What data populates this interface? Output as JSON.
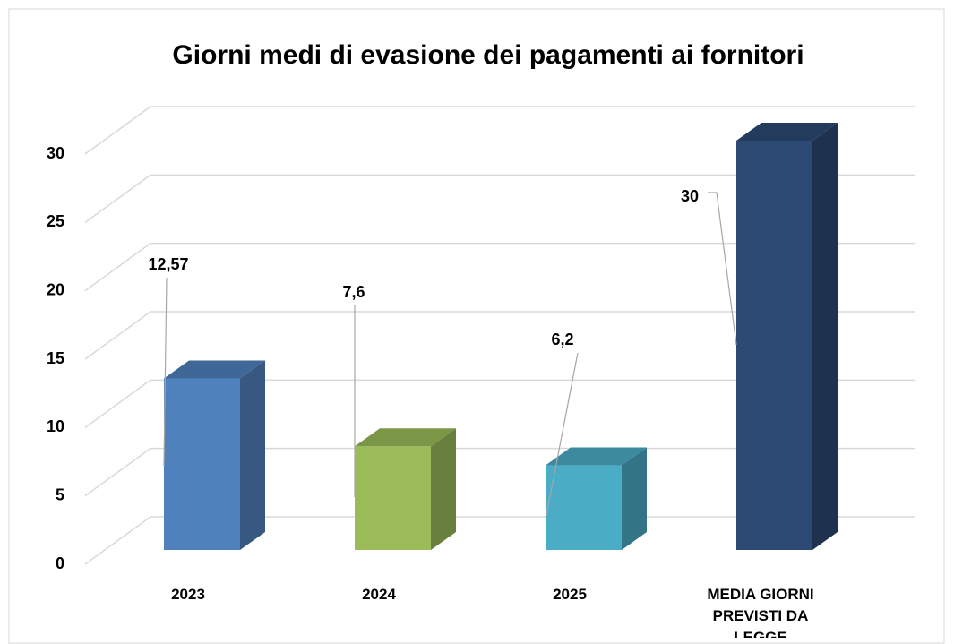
{
  "chart_data": {
    "type": "bar3d",
    "title": "Giorni medi di evasione dei pagamenti ai fornitori",
    "categories": [
      "2023",
      "2024",
      "2025",
      "MEDIA GIORNI PREVISTI DA LEGGE"
    ],
    "values": [
      12.57,
      7.6,
      6.2,
      30
    ],
    "value_labels": [
      "12,57",
      "7,6",
      "6,2",
      "30"
    ],
    "colors": [
      "#4f81bd",
      "#9bbb59",
      "#4bacc6",
      "#2c4a74"
    ],
    "ylim": [
      0,
      30
    ],
    "yticks": [
      0,
      5,
      10,
      15,
      20,
      25,
      30
    ],
    "grid": true
  }
}
